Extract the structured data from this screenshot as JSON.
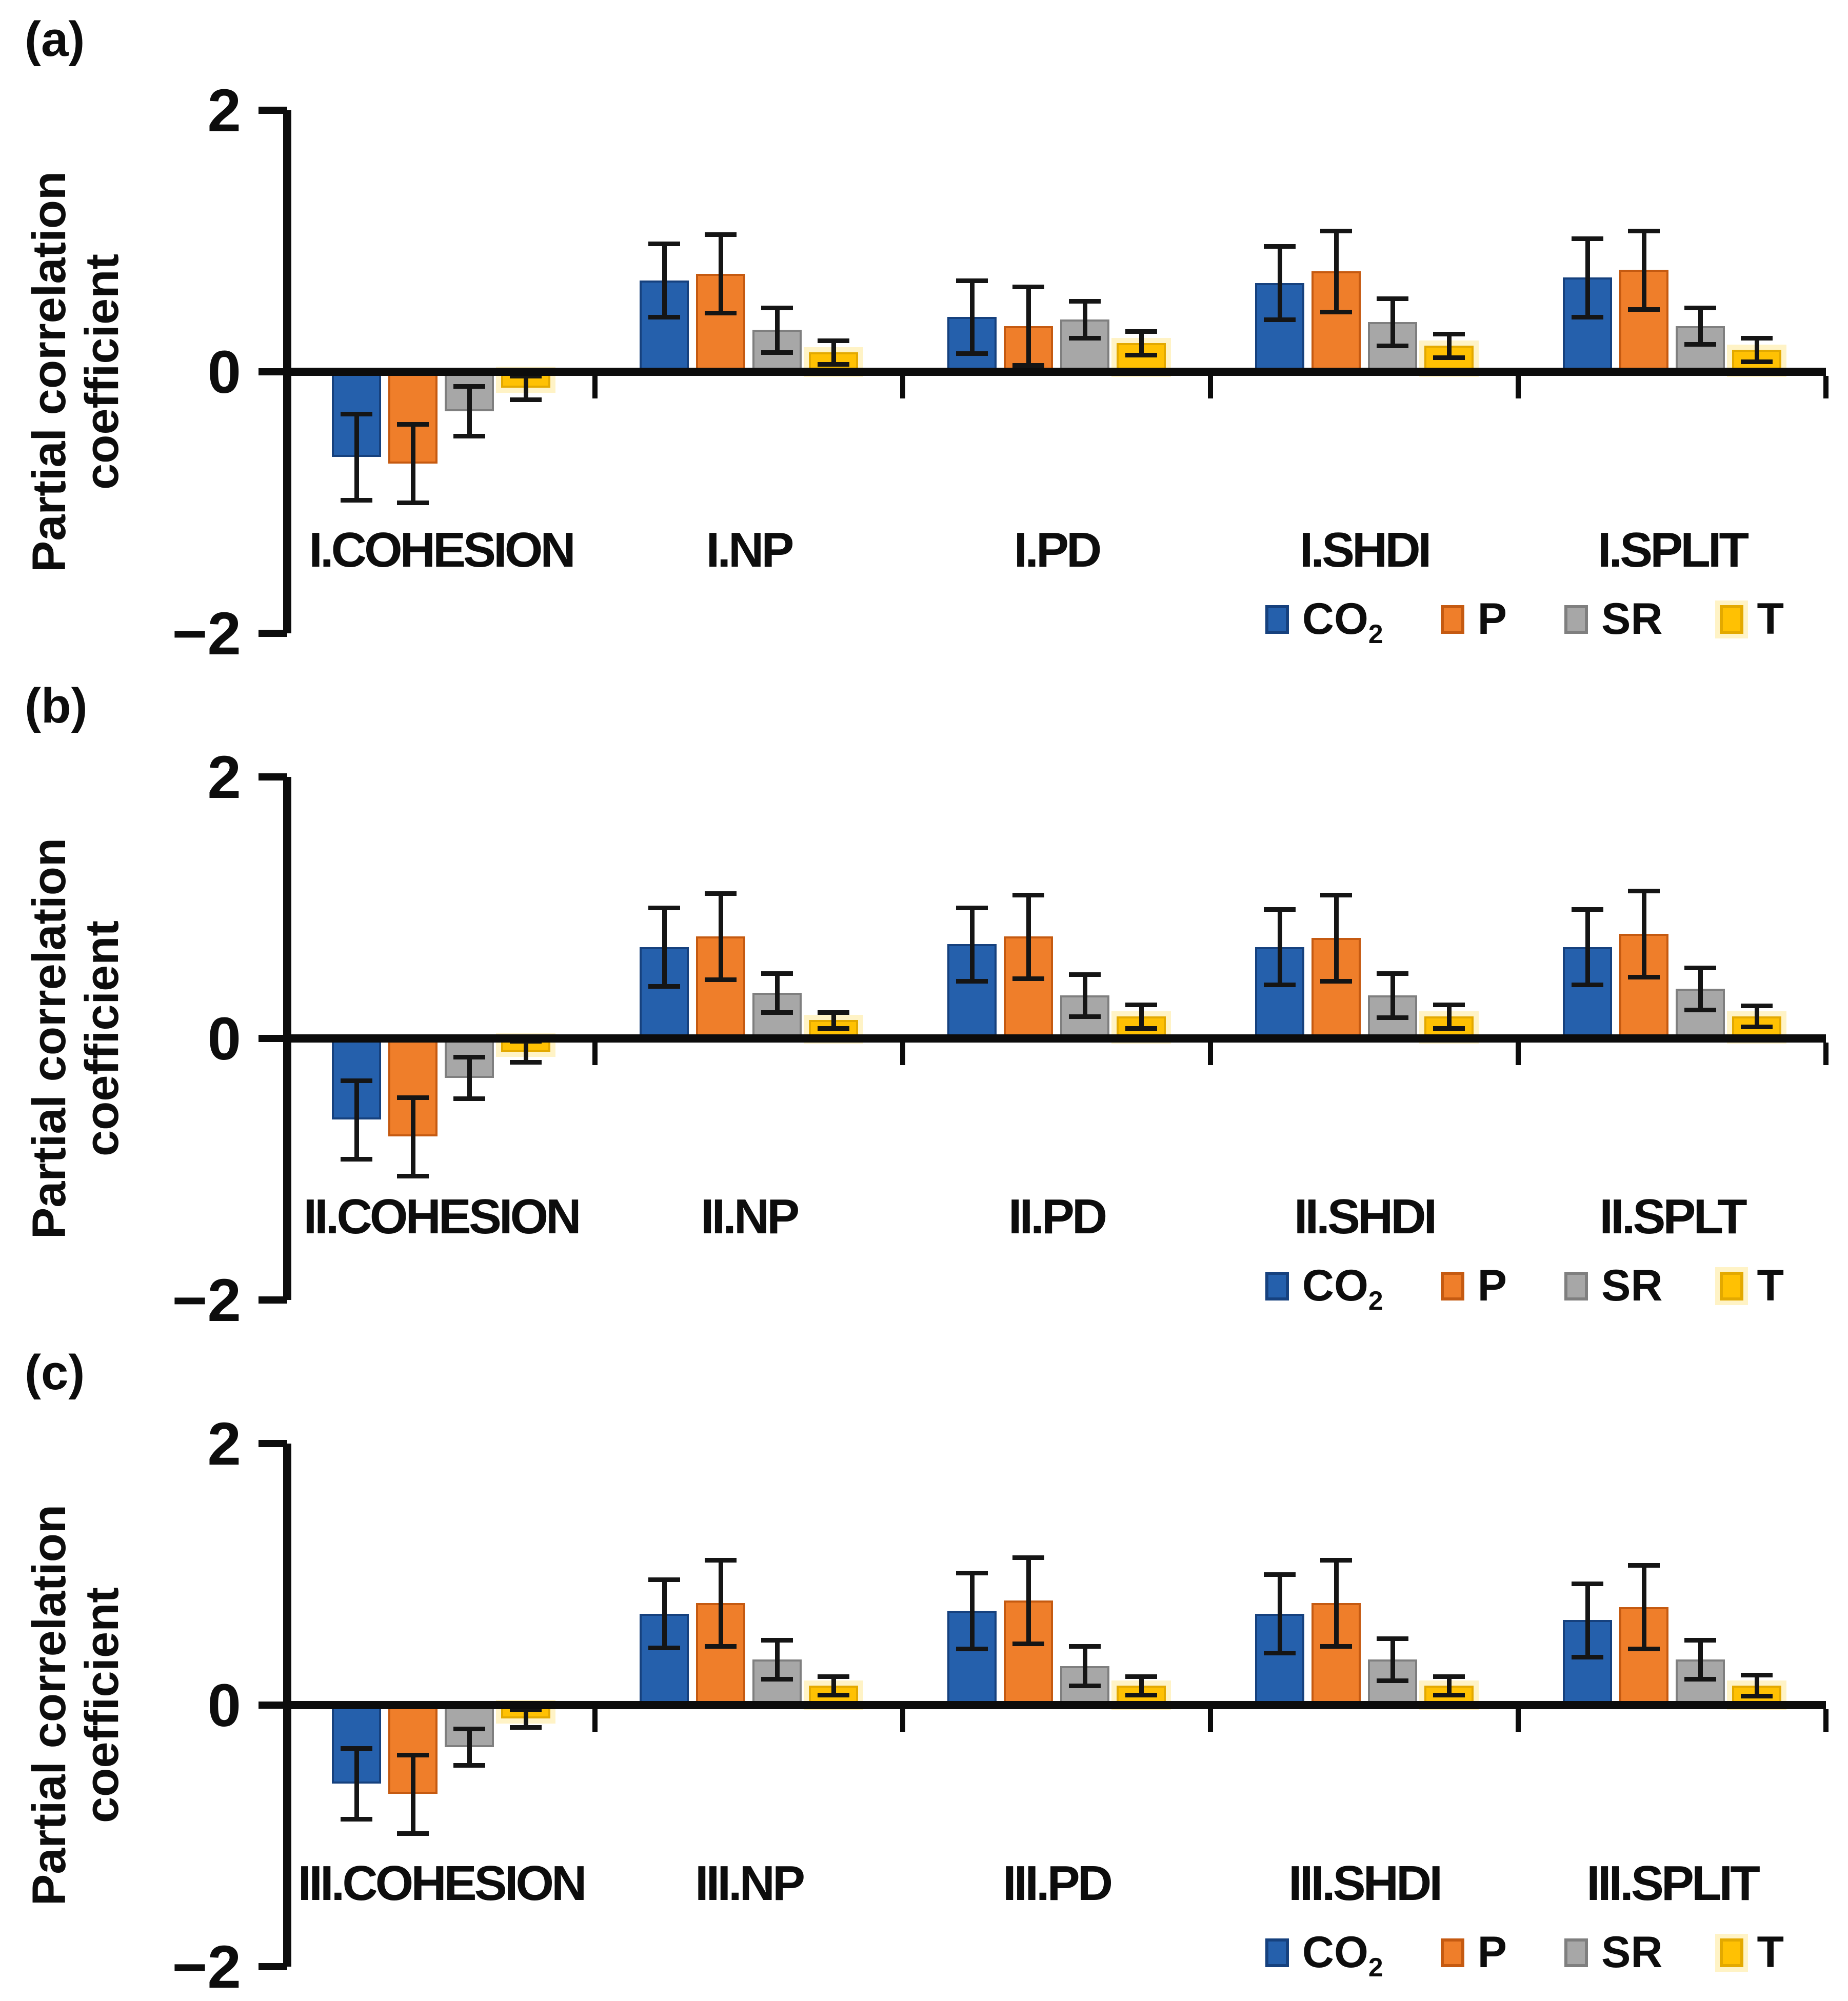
{
  "figure": {
    "background": "#ffffff",
    "axis_color": "#0c0c0c",
    "error_bar_color": "#151515"
  },
  "series_styles": {
    "CO2": {
      "fill": "#2560AC",
      "border": "#16417E"
    },
    "P": {
      "fill": "#EF7E2A",
      "border": "#C55A11"
    },
    "SR": {
      "fill": "#A7A7A7",
      "border": "#7F7F7F"
    },
    "T": {
      "fill": "#FFC103",
      "border": "#E3A900",
      "glow": "#FFF3C6"
    }
  },
  "legend": {
    "items": [
      {
        "series": "CO2",
        "text": "CO",
        "subscript": "2"
      },
      {
        "series": "P",
        "text": "P"
      },
      {
        "series": "SR",
        "text": "SR"
      },
      {
        "series": "T",
        "text": "T"
      }
    ]
  },
  "chart_data": [
    {
      "type": "bar",
      "panel_label": "(a)",
      "ylabel": "Partial correlation coefficient",
      "ylabel_lines": [
        "Partial correlation",
        "coefficient"
      ],
      "ylim": [
        -2,
        2
      ],
      "yticks": [
        2,
        0,
        -2
      ],
      "ytick_labels": [
        "2",
        "0",
        "−2"
      ],
      "grid": false,
      "legend_position": "bottom-right",
      "categories": [
        "I.COHESION",
        "I.NP",
        "I.PD",
        "I.SHDI",
        "I.SPLIT"
      ],
      "series": [
        {
          "name": "CO2",
          "values": [
            -0.65,
            0.7,
            0.42,
            0.68,
            0.72
          ],
          "errors": [
            0.33,
            0.28,
            0.28,
            0.28,
            0.3
          ]
        },
        {
          "name": "P",
          "values": [
            -0.7,
            0.75,
            0.35,
            0.77,
            0.78
          ],
          "errors": [
            0.3,
            0.3,
            0.3,
            0.31,
            0.3
          ]
        },
        {
          "name": "SR",
          "values": [
            -0.3,
            0.32,
            0.4,
            0.38,
            0.35
          ],
          "errors": [
            0.19,
            0.17,
            0.14,
            0.18,
            0.14
          ]
        },
        {
          "name": "T",
          "values": [
            -0.12,
            0.15,
            0.22,
            0.2,
            0.17
          ],
          "errors": [
            0.09,
            0.09,
            0.09,
            0.09,
            0.09
          ]
        }
      ]
    },
    {
      "type": "bar",
      "panel_label": "(b)",
      "ylabel": "Partial correlation coefficient",
      "ylabel_lines": [
        "Partial correlation",
        "coefficient"
      ],
      "ylim": [
        -2,
        2
      ],
      "yticks": [
        2,
        0,
        -2
      ],
      "ytick_labels": [
        "2",
        "0",
        "−2"
      ],
      "grid": false,
      "legend_position": "bottom-right",
      "categories": [
        "II.COHESION",
        "II.NP",
        "II.PD",
        "II.SHDI",
        "II.SPLT"
      ],
      "series": [
        {
          "name": "CO2",
          "values": [
            -0.62,
            0.7,
            0.72,
            0.7,
            0.7
          ],
          "errors": [
            0.3,
            0.3,
            0.28,
            0.29,
            0.29
          ]
        },
        {
          "name": "P",
          "values": [
            -0.75,
            0.78,
            0.78,
            0.77,
            0.8
          ],
          "errors": [
            0.3,
            0.33,
            0.32,
            0.33,
            0.33
          ]
        },
        {
          "name": "SR",
          "values": [
            -0.3,
            0.35,
            0.33,
            0.33,
            0.38
          ],
          "errors": [
            0.16,
            0.15,
            0.16,
            0.17,
            0.16
          ]
        },
        {
          "name": "T",
          "values": [
            -0.1,
            0.14,
            0.17,
            0.17,
            0.17
          ],
          "errors": [
            0.08,
            0.06,
            0.09,
            0.09,
            0.08
          ]
        }
      ]
    },
    {
      "type": "bar",
      "panel_label": "(c)",
      "ylabel": "Partial correlation coefficient",
      "ylabel_lines": [
        "Partial correlation",
        "coefficient"
      ],
      "ylim": [
        -2,
        2
      ],
      "yticks": [
        2,
        0,
        -2
      ],
      "ytick_labels": [
        "2",
        "0",
        "−2"
      ],
      "grid": false,
      "legend_position": "bottom-right",
      "categories": [
        "III.COHESION",
        "III.NP",
        "III.PD",
        "III.SHDI",
        "III.SPLIT"
      ],
      "series": [
        {
          "name": "CO2",
          "values": [
            -0.6,
            0.7,
            0.72,
            0.7,
            0.65
          ],
          "errors": [
            0.27,
            0.26,
            0.29,
            0.3,
            0.28
          ]
        },
        {
          "name": "P",
          "values": [
            -0.68,
            0.78,
            0.8,
            0.78,
            0.75
          ],
          "errors": [
            0.3,
            0.33,
            0.33,
            0.33,
            0.32
          ]
        },
        {
          "name": "SR",
          "values": [
            -0.32,
            0.35,
            0.3,
            0.35,
            0.35
          ],
          "errors": [
            0.14,
            0.15,
            0.15,
            0.16,
            0.15
          ]
        },
        {
          "name": "T",
          "values": [
            -0.1,
            0.15,
            0.15,
            0.15,
            0.15
          ],
          "errors": [
            0.07,
            0.07,
            0.07,
            0.07,
            0.08
          ]
        }
      ]
    }
  ]
}
